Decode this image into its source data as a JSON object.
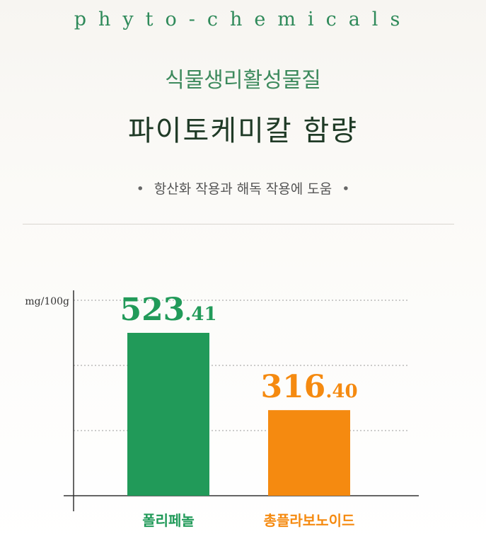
{
  "header": {
    "english_title": "phyto-chemicals",
    "korean_subtitle": "식물생리활성물질",
    "korean_title": "파이토케미칼 함량",
    "tagline": "항산화 작용과 해독 작용에 도움",
    "bullet": "•"
  },
  "colors": {
    "green": "#219a59",
    "orange": "#f58a10",
    "axis": "#333333",
    "grid": "#9a9a9a"
  },
  "chart_data": {
    "type": "bar",
    "unit_label": "mg/100g",
    "categories": [
      "폴리페놀",
      "총플라보노이드"
    ],
    "values": [
      523.41,
      316.4
    ],
    "value_labels": [
      {
        "int": "523",
        "dec": ".41"
      },
      {
        "int": "316",
        "dec": ".40"
      }
    ],
    "ylim": [
      0,
      523.41
    ],
    "grid": "dotted"
  }
}
